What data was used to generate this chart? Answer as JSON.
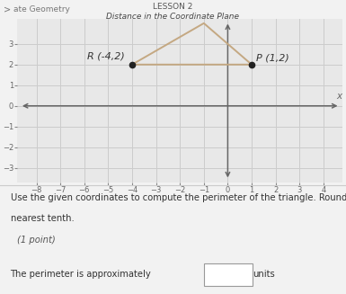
{
  "title_lesson": "LESSON 2",
  "title_main": "Distance in the Coordinate Plane",
  "breadcrumb": "ate Geometry",
  "points": {
    "R": [
      -4,
      2
    ],
    "P": [
      1,
      2
    ],
    "Q": [
      -1,
      4
    ]
  },
  "point_labels": {
    "R": "R (-4,2)",
    "P": "P (1,2)"
  },
  "triangle_color": "#c4a882",
  "point_color": "#222222",
  "axis_color": "#666666",
  "grid_color": "#cccccc",
  "background_color": "#f2f2f2",
  "plot_bg": "#e8e8e8",
  "header_bg": "#e0e0e0",
  "xlim": [
    -8.8,
    4.8
  ],
  "ylim": [
    -3.7,
    4.2
  ],
  "xticks": [
    -8,
    -7,
    -6,
    -5,
    -4,
    -3,
    -2,
    -1,
    0,
    1,
    2,
    3,
    4
  ],
  "yticks": [
    -3,
    -2,
    -1,
    0,
    1,
    2,
    3
  ],
  "question_text1": "Use the given coordinates to compute the perimeter of the triangle. Round your answer to the",
  "question_text2": "nearest tenth.",
  "point_label": "(1 point)",
  "answer_text": "The perimeter is approximately",
  "answer_unit": "units"
}
